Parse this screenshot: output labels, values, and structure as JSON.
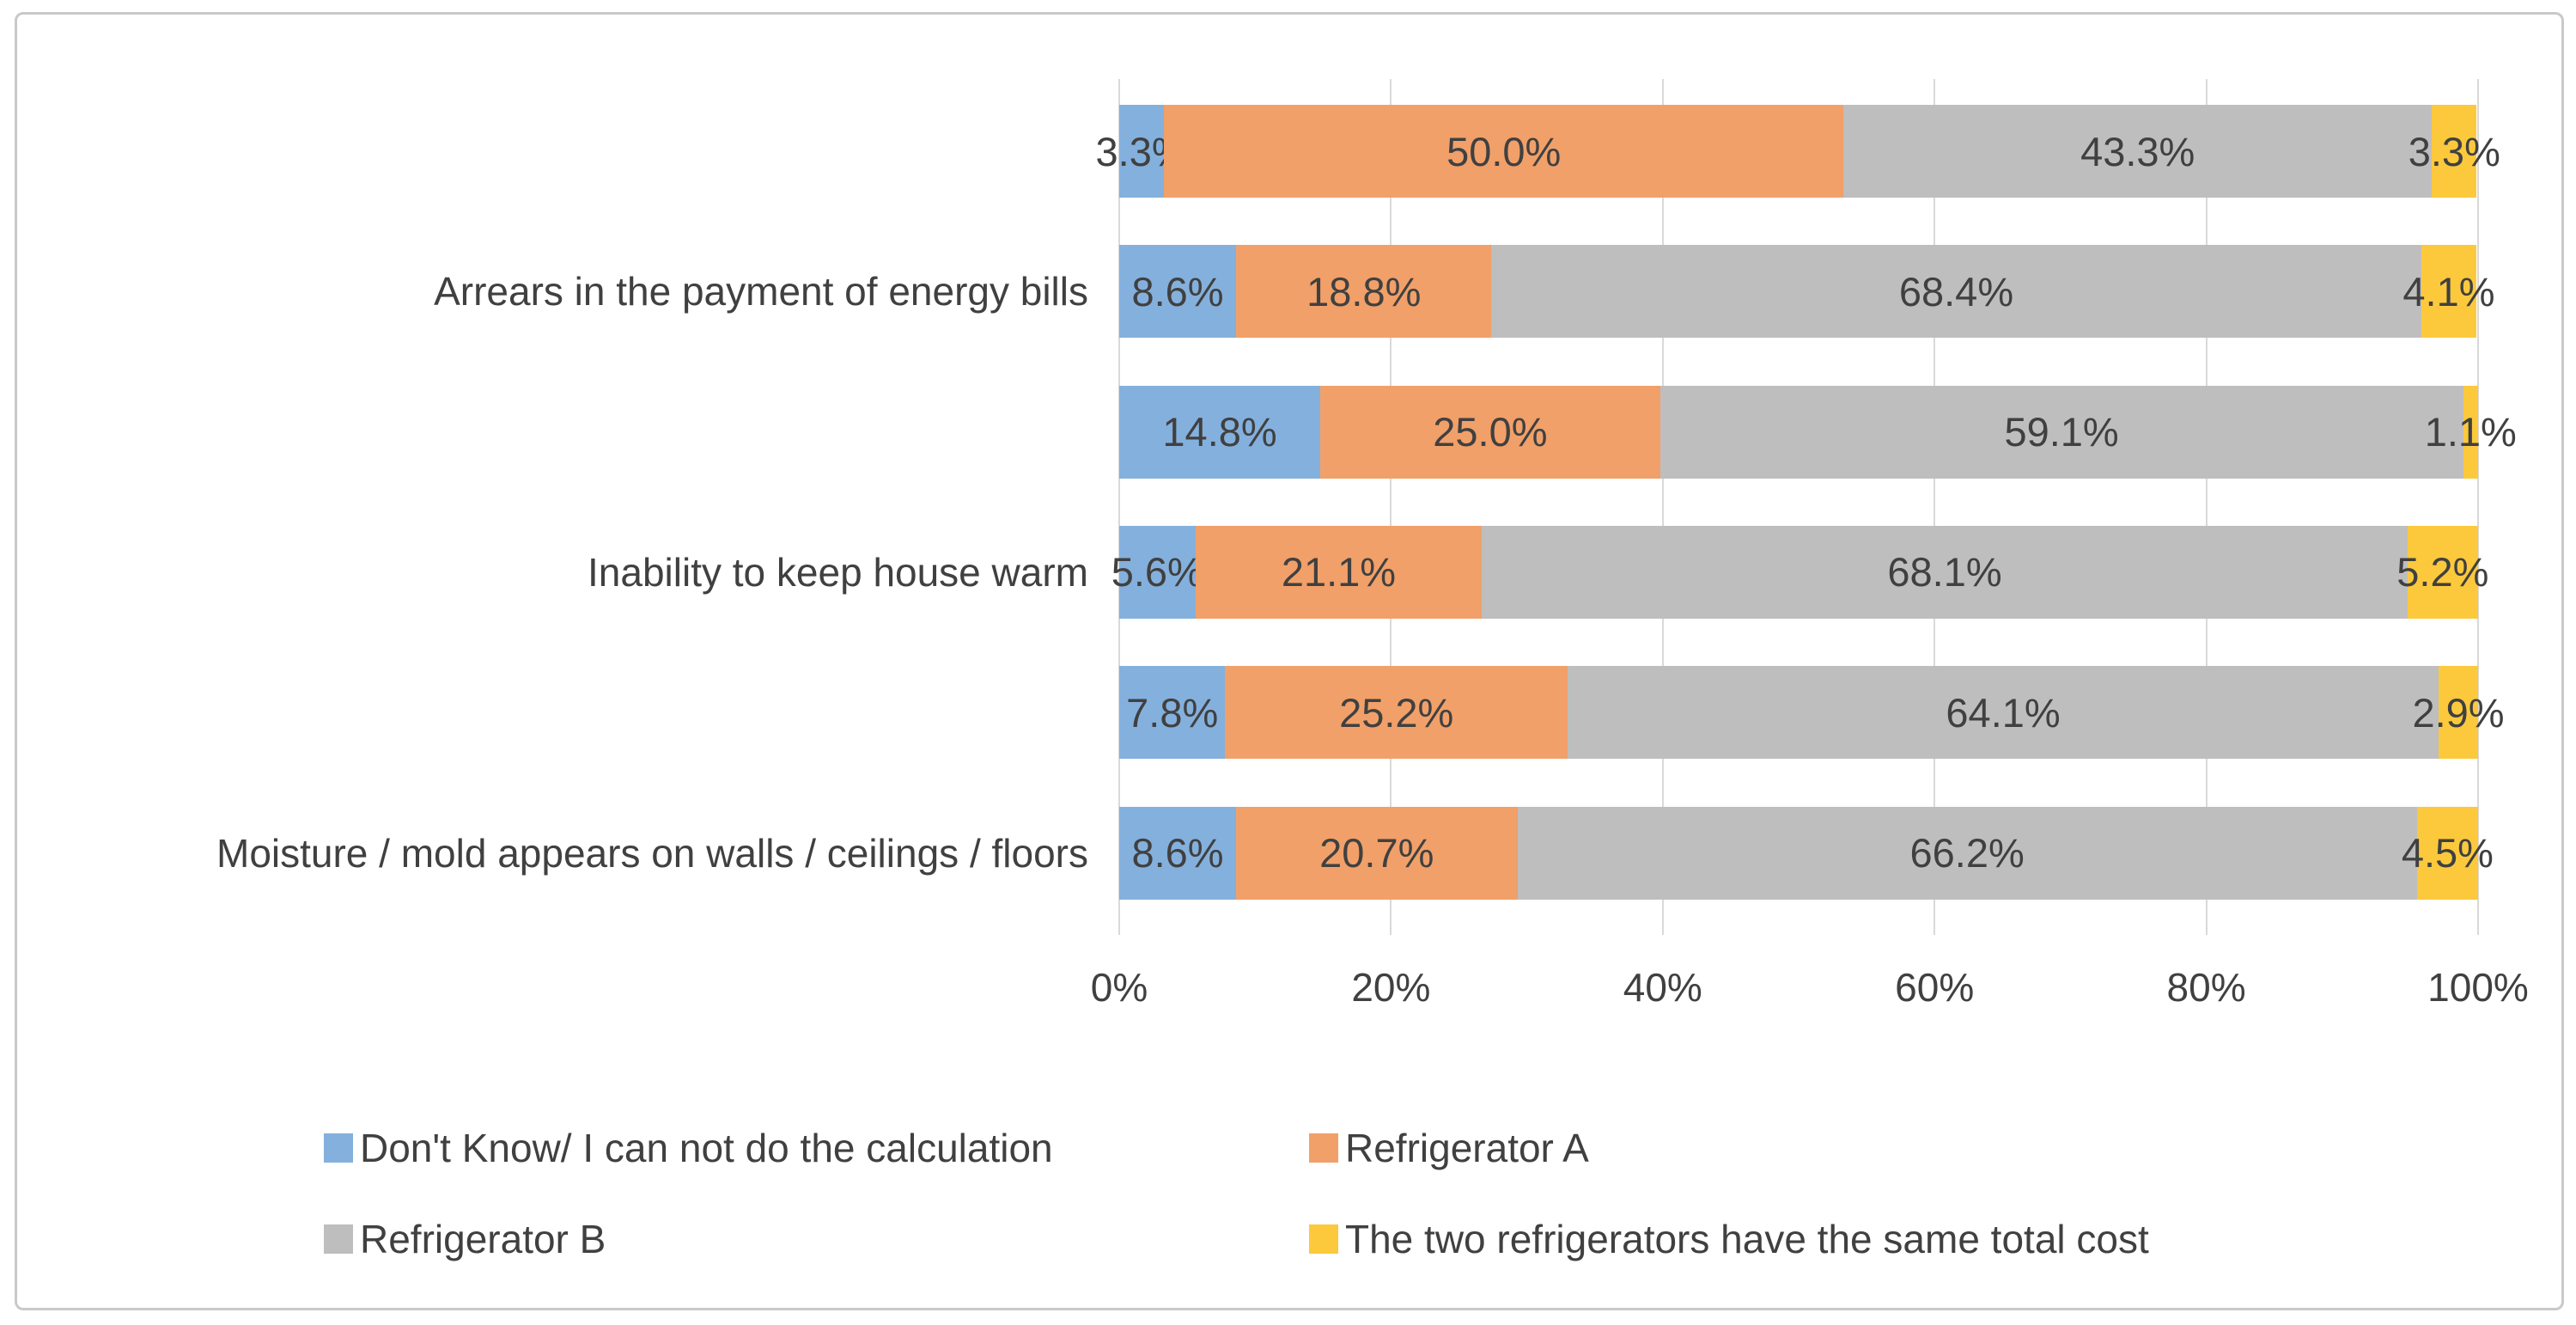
{
  "chart_data": {
    "type": "bar",
    "orientation": "horizontal",
    "stacked": "100%",
    "title": "",
    "categories": [
      "",
      "Arrears in the payment of energy bills",
      "",
      "Inability to keep house warm",
      "",
      "Moisture / mold appears on walls / ceilings / floors"
    ],
    "series": [
      {
        "name": "Don't Know/ I can not do the calculation",
        "color": "#84B0DD",
        "values": [
          3.3,
          8.6,
          14.8,
          5.6,
          7.8,
          8.6
        ]
      },
      {
        "name": "Refrigerator A",
        "color": "#F1A069",
        "values": [
          50.0,
          18.8,
          25.0,
          21.1,
          25.2,
          20.7
        ]
      },
      {
        "name": "Refrigerator B",
        "color": "#BEBEBE",
        "values": [
          43.3,
          68.4,
          59.1,
          68.1,
          64.1,
          66.2
        ]
      },
      {
        "name": "The two refrigerators have the same total cost",
        "color": "#FCC93D",
        "values": [
          3.3,
          4.1,
          1.1,
          5.2,
          2.9,
          4.5
        ]
      }
    ],
    "data_labels": [
      [
        "3.3%",
        "50.0%",
        "43.3%",
        "3.3%"
      ],
      [
        "8.6%",
        "18.8%",
        "68.4%",
        "4.1%"
      ],
      [
        "14.8%",
        "25.0%",
        "59.1%",
        "1.1%"
      ],
      [
        "5.6%",
        "21.1%",
        "68.1%",
        "5.2%"
      ],
      [
        "7.8%",
        "25.2%",
        "64.1%",
        "2.9%"
      ],
      [
        "8.6%",
        "20.7%",
        "66.2%",
        "4.5%"
      ]
    ],
    "x_axis": {
      "ticks": [
        "0%",
        "20%",
        "40%",
        "60%",
        "80%",
        "100%"
      ],
      "range": [
        0,
        100
      ]
    },
    "grid": true,
    "legend_position": "bottom"
  },
  "colors": {
    "grid": "#D9D9D9",
    "border": "#C9C9C9",
    "text": "#404040",
    "background": "#FFFFFF"
  }
}
